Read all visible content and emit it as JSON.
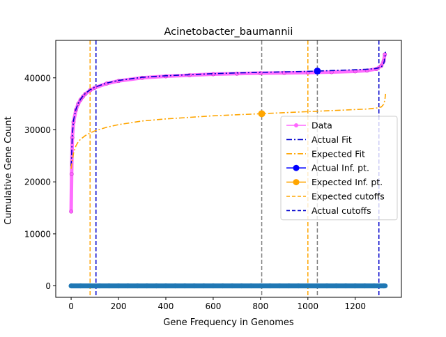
{
  "chart_data": {
    "type": "line",
    "title": "Acinetobacter_baumannii",
    "xlabel": "Gene Frequency in Genomes",
    "ylabel": "Cumulative Gene Count",
    "xlim": [
      -65,
      1395
    ],
    "ylim": [
      -2200,
      47200
    ],
    "x_ticks": [
      0,
      200,
      400,
      600,
      800,
      1000,
      1200
    ],
    "x_tick_labels": [
      "0",
      "200",
      "400",
      "600",
      "800",
      "1000",
      "1200"
    ],
    "y_ticks": [
      0,
      10000,
      20000,
      30000,
      40000
    ],
    "y_tick_labels": [
      "0",
      "10000",
      "20000",
      "30000",
      "40000"
    ],
    "grid": false,
    "legend_position": "center-right",
    "series": [
      {
        "name": "Data",
        "style": "line-with-circle-markers",
        "color": "#ff66ff",
        "x": [
          0,
          2,
          5,
          10,
          20,
          30,
          40,
          50,
          60,
          80,
          100,
          150,
          200,
          300,
          400,
          500,
          600,
          700,
          800,
          900,
          1000,
          1100,
          1200,
          1250,
          1290,
          1310,
          1320,
          1325
        ],
        "y": [
          14300,
          21500,
          28500,
          31500,
          33800,
          35000,
          35800,
          36400,
          36900,
          37600,
          38100,
          38900,
          39400,
          40000,
          40300,
          40500,
          40700,
          40800,
          40900,
          40950,
          41000,
          41100,
          41250,
          41400,
          41700,
          42300,
          43200,
          44500
        ]
      },
      {
        "name": "Actual Fit",
        "style": "dash-dot",
        "color": "#0000cc",
        "x": [
          0,
          2,
          5,
          10,
          20,
          30,
          40,
          50,
          60,
          80,
          100,
          150,
          200,
          300,
          400,
          500,
          600,
          700,
          800,
          900,
          1000,
          1040,
          1100,
          1200,
          1250,
          1290,
          1310,
          1320,
          1325,
          1328
        ],
        "y": [
          23000,
          25000,
          29000,
          31800,
          33900,
          35100,
          35900,
          36500,
          37000,
          37700,
          38200,
          39000,
          39500,
          40100,
          40400,
          40600,
          40800,
          40950,
          41050,
          41150,
          41250,
          41300,
          41400,
          41550,
          41650,
          41800,
          42100,
          42700,
          43700,
          45000
        ]
      },
      {
        "name": "Expected Fit",
        "style": "dash-dot",
        "color": "#ffa500",
        "x": [
          0,
          2,
          5,
          10,
          20,
          30,
          40,
          60,
          80,
          100,
          150,
          200,
          300,
          400,
          500,
          600,
          700,
          800,
          900,
          1000,
          1100,
          1200,
          1250,
          1290,
          1310,
          1320,
          1325,
          1328
        ],
        "y": [
          22500,
          23300,
          24000,
          25500,
          26900,
          27700,
          28200,
          28900,
          29400,
          29800,
          30500,
          31000,
          31700,
          32100,
          32400,
          32700,
          32900,
          33100,
          33300,
          33500,
          33700,
          33900,
          34000,
          34200,
          34400,
          34900,
          35700,
          36900
        ]
      }
    ],
    "points": [
      {
        "name": "Actual Inf. pt.",
        "x": 1040,
        "y": 41300,
        "color": "#0000ff"
      },
      {
        "name": "Expected Inf. pt.",
        "x": 805,
        "y": 33100,
        "color": "#ffa500"
      }
    ],
    "vertical_lines": [
      {
        "x": 80,
        "color": "#ffa500",
        "group": "Expected cutoffs"
      },
      {
        "x": 1000,
        "color": "#ffa500",
        "group": "Expected cutoffs"
      },
      {
        "x": 105,
        "color": "#0000cc",
        "group": "Actual cutoffs"
      },
      {
        "x": 1300,
        "color": "#0000cc",
        "group": "Actual cutoffs"
      },
      {
        "x": 805,
        "color": "#808080",
        "group": ""
      },
      {
        "x": 1040,
        "color": "#808080",
        "group": ""
      }
    ],
    "baseline_scatter": {
      "color": "#1f77b4",
      "y": 0,
      "x_from": 0,
      "x_to": 1328
    },
    "legend": [
      {
        "label": "Data",
        "kind": "marker-line",
        "color": "#ff66ff"
      },
      {
        "label": "Actual Fit",
        "kind": "dashdot",
        "color": "#0000cc"
      },
      {
        "label": "Expected Fit",
        "kind": "dashdot",
        "color": "#ffa500"
      },
      {
        "label": "Actual Inf. pt.",
        "kind": "point-line",
        "color": "#0000ff"
      },
      {
        "label": "Expected Inf. pt.",
        "kind": "point-line",
        "color": "#ffa500"
      },
      {
        "label": "Expected cutoffs",
        "kind": "dashed",
        "color": "#ffa500"
      },
      {
        "label": "Actual cutoffs",
        "kind": "dashed",
        "color": "#0000cc"
      }
    ]
  }
}
